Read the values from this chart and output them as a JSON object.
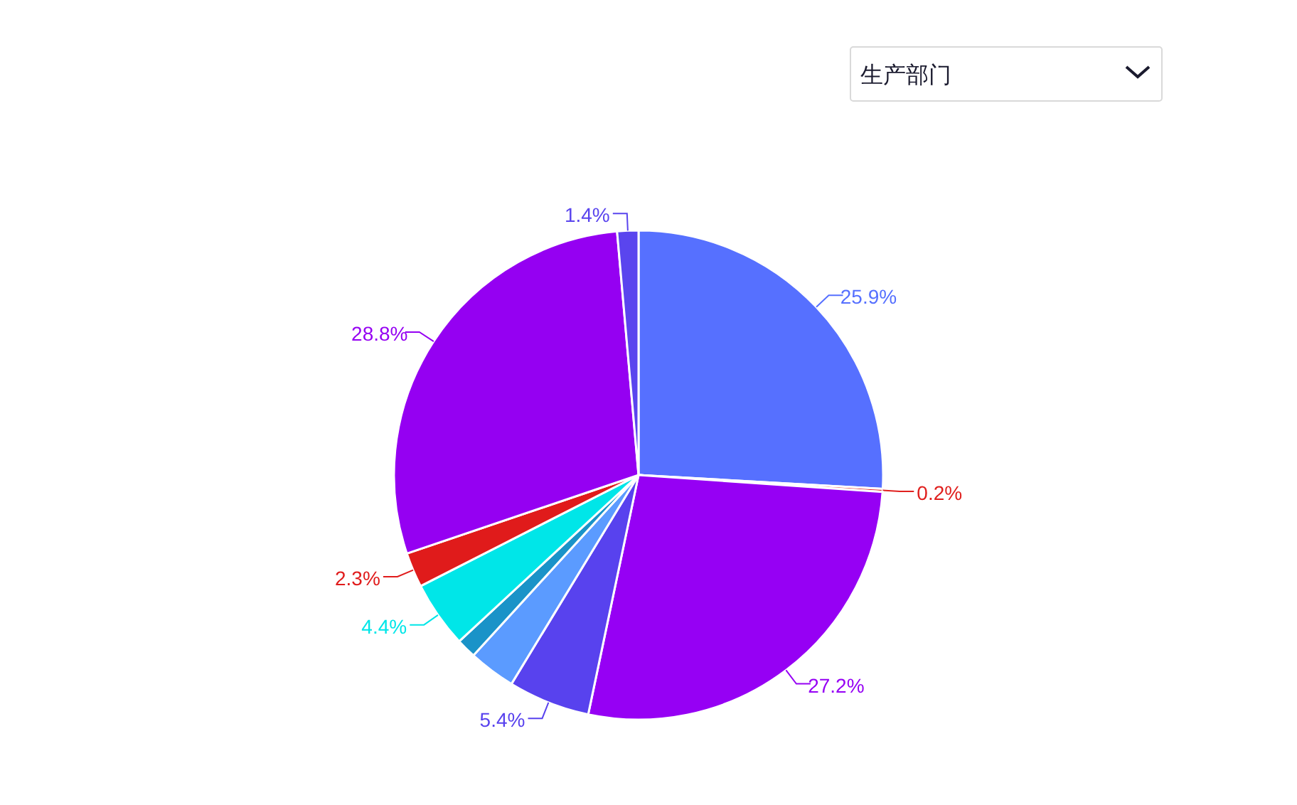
{
  "chart_data": {
    "type": "pie",
    "categories": [
      null,
      null,
      null,
      null,
      null,
      null,
      null,
      null,
      null,
      null
    ],
    "values": [
      25.9,
      0.2,
      27.2,
      5.4,
      3.1,
      1.3,
      4.4,
      2.3,
      28.8,
      1.4
    ],
    "colors": [
      "#5670ff",
      "#e0201e",
      "#9600f4",
      "#5842ee",
      "#5b9bff",
      "#1a93c8",
      "#00e6e8",
      "#e01b1b",
      "#9500f2",
      "#5a45ee"
    ],
    "value_labels": [
      "25.9%",
      "0.2%",
      "27.2%",
      "5.4%",
      null,
      null,
      "4.4%",
      "2.3%",
      "28.8%",
      "1.4%"
    ],
    "annotations": [
      "生产部门"
    ]
  }
}
